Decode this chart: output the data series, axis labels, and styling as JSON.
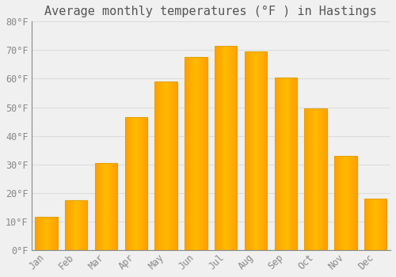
{
  "title": "Average monthly temperatures (°F ) in Hastings",
  "months": [
    "Jan",
    "Feb",
    "Mar",
    "Apr",
    "May",
    "Jun",
    "Jul",
    "Aug",
    "Sep",
    "Oct",
    "Nov",
    "Dec"
  ],
  "values": [
    11.5,
    17.5,
    30.5,
    46.5,
    59.0,
    67.5,
    71.5,
    69.5,
    60.5,
    49.5,
    33.0,
    18.0
  ],
  "bar_color_main": "#FFBB00",
  "bar_color_edge": "#F5A800",
  "background_color": "#F0F0F0",
  "grid_color": "#DDDDDD",
  "text_color": "#888888",
  "title_color": "#555555",
  "ylim": [
    0,
    80
  ],
  "yticks": [
    0,
    10,
    20,
    30,
    40,
    50,
    60,
    70,
    80
  ],
  "ytick_labels": [
    "0°F",
    "10°F",
    "20°F",
    "30°F",
    "40°F",
    "50°F",
    "60°F",
    "70°F",
    "80°F"
  ],
  "title_fontsize": 11,
  "tick_fontsize": 8.5,
  "font_family": "monospace",
  "bar_width": 0.75
}
